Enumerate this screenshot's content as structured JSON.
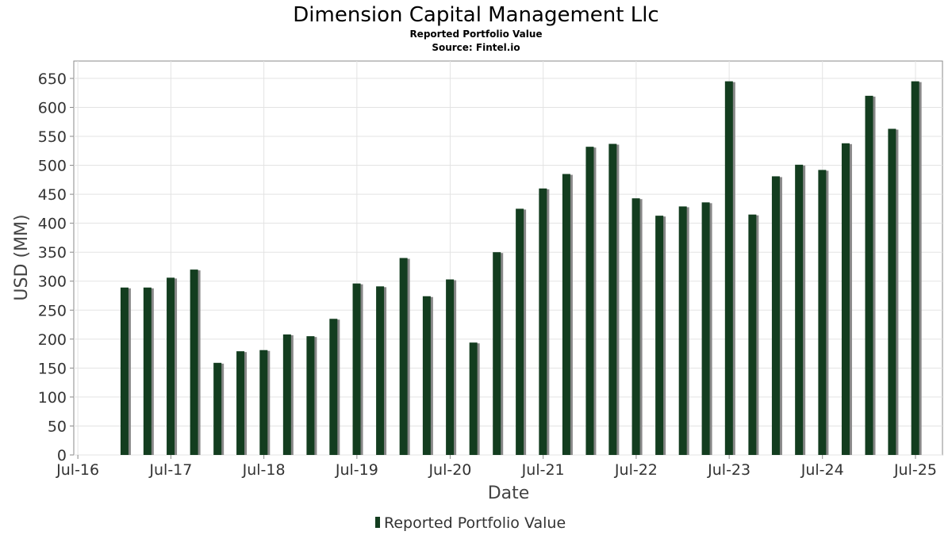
{
  "chart_data": {
    "type": "bar",
    "title": "Dimension Capital Management Llc",
    "subtitle": "Reported Portfolio Value",
    "source": "Source: Fintel.io",
    "xlabel": "Date",
    "ylabel": "USD (MM)",
    "ylim": [
      0,
      680
    ],
    "yticks": [
      0,
      50,
      100,
      150,
      200,
      250,
      300,
      350,
      400,
      450,
      500,
      550,
      600,
      650
    ],
    "xlim": [
      "2016-06-15",
      "2025-10-15"
    ],
    "xticks": [
      {
        "label": "Jul-16",
        "date": "2016-07-01"
      },
      {
        "label": "Jul-17",
        "date": "2017-07-01"
      },
      {
        "label": "Jul-18",
        "date": "2018-07-01"
      },
      {
        "label": "Jul-19",
        "date": "2019-07-01"
      },
      {
        "label": "Jul-20",
        "date": "2020-07-01"
      },
      {
        "label": "Jul-21",
        "date": "2021-07-01"
      },
      {
        "label": "Jul-22",
        "date": "2022-07-01"
      },
      {
        "label": "Jul-23",
        "date": "2023-07-01"
      },
      {
        "label": "Jul-24",
        "date": "2024-07-01"
      },
      {
        "label": "Jul-25",
        "date": "2025-07-01"
      }
    ],
    "grid": true,
    "legend_position": "bottom-center",
    "bar_color": "#133d1f",
    "shadow_color": "#888888",
    "series": [
      {
        "name": "Reported Portfolio Value",
        "x": [
          "2016-12-31",
          "2017-03-31",
          "2017-06-30",
          "2017-09-30",
          "2017-12-31",
          "2018-03-31",
          "2018-06-30",
          "2018-09-30",
          "2018-12-31",
          "2019-03-31",
          "2019-06-30",
          "2019-09-30",
          "2019-12-31",
          "2020-03-31",
          "2020-06-30",
          "2020-09-30",
          "2020-12-31",
          "2021-03-31",
          "2021-06-30",
          "2021-09-30",
          "2021-12-31",
          "2022-03-31",
          "2022-06-30",
          "2022-09-30",
          "2022-12-31",
          "2023-03-31",
          "2023-06-30",
          "2023-09-30",
          "2023-12-31",
          "2024-03-31",
          "2024-06-30",
          "2024-09-30",
          "2024-12-31",
          "2025-03-31",
          "2025-06-30"
        ],
        "values": [
          289,
          289,
          306,
          320,
          159,
          179,
          181,
          208,
          205,
          235,
          296,
          291,
          340,
          274,
          303,
          194,
          350,
          425,
          460,
          485,
          532,
          537,
          443,
          413,
          429,
          436,
          645,
          415,
          481,
          501,
          492,
          538,
          620,
          563,
          645
        ]
      }
    ]
  }
}
